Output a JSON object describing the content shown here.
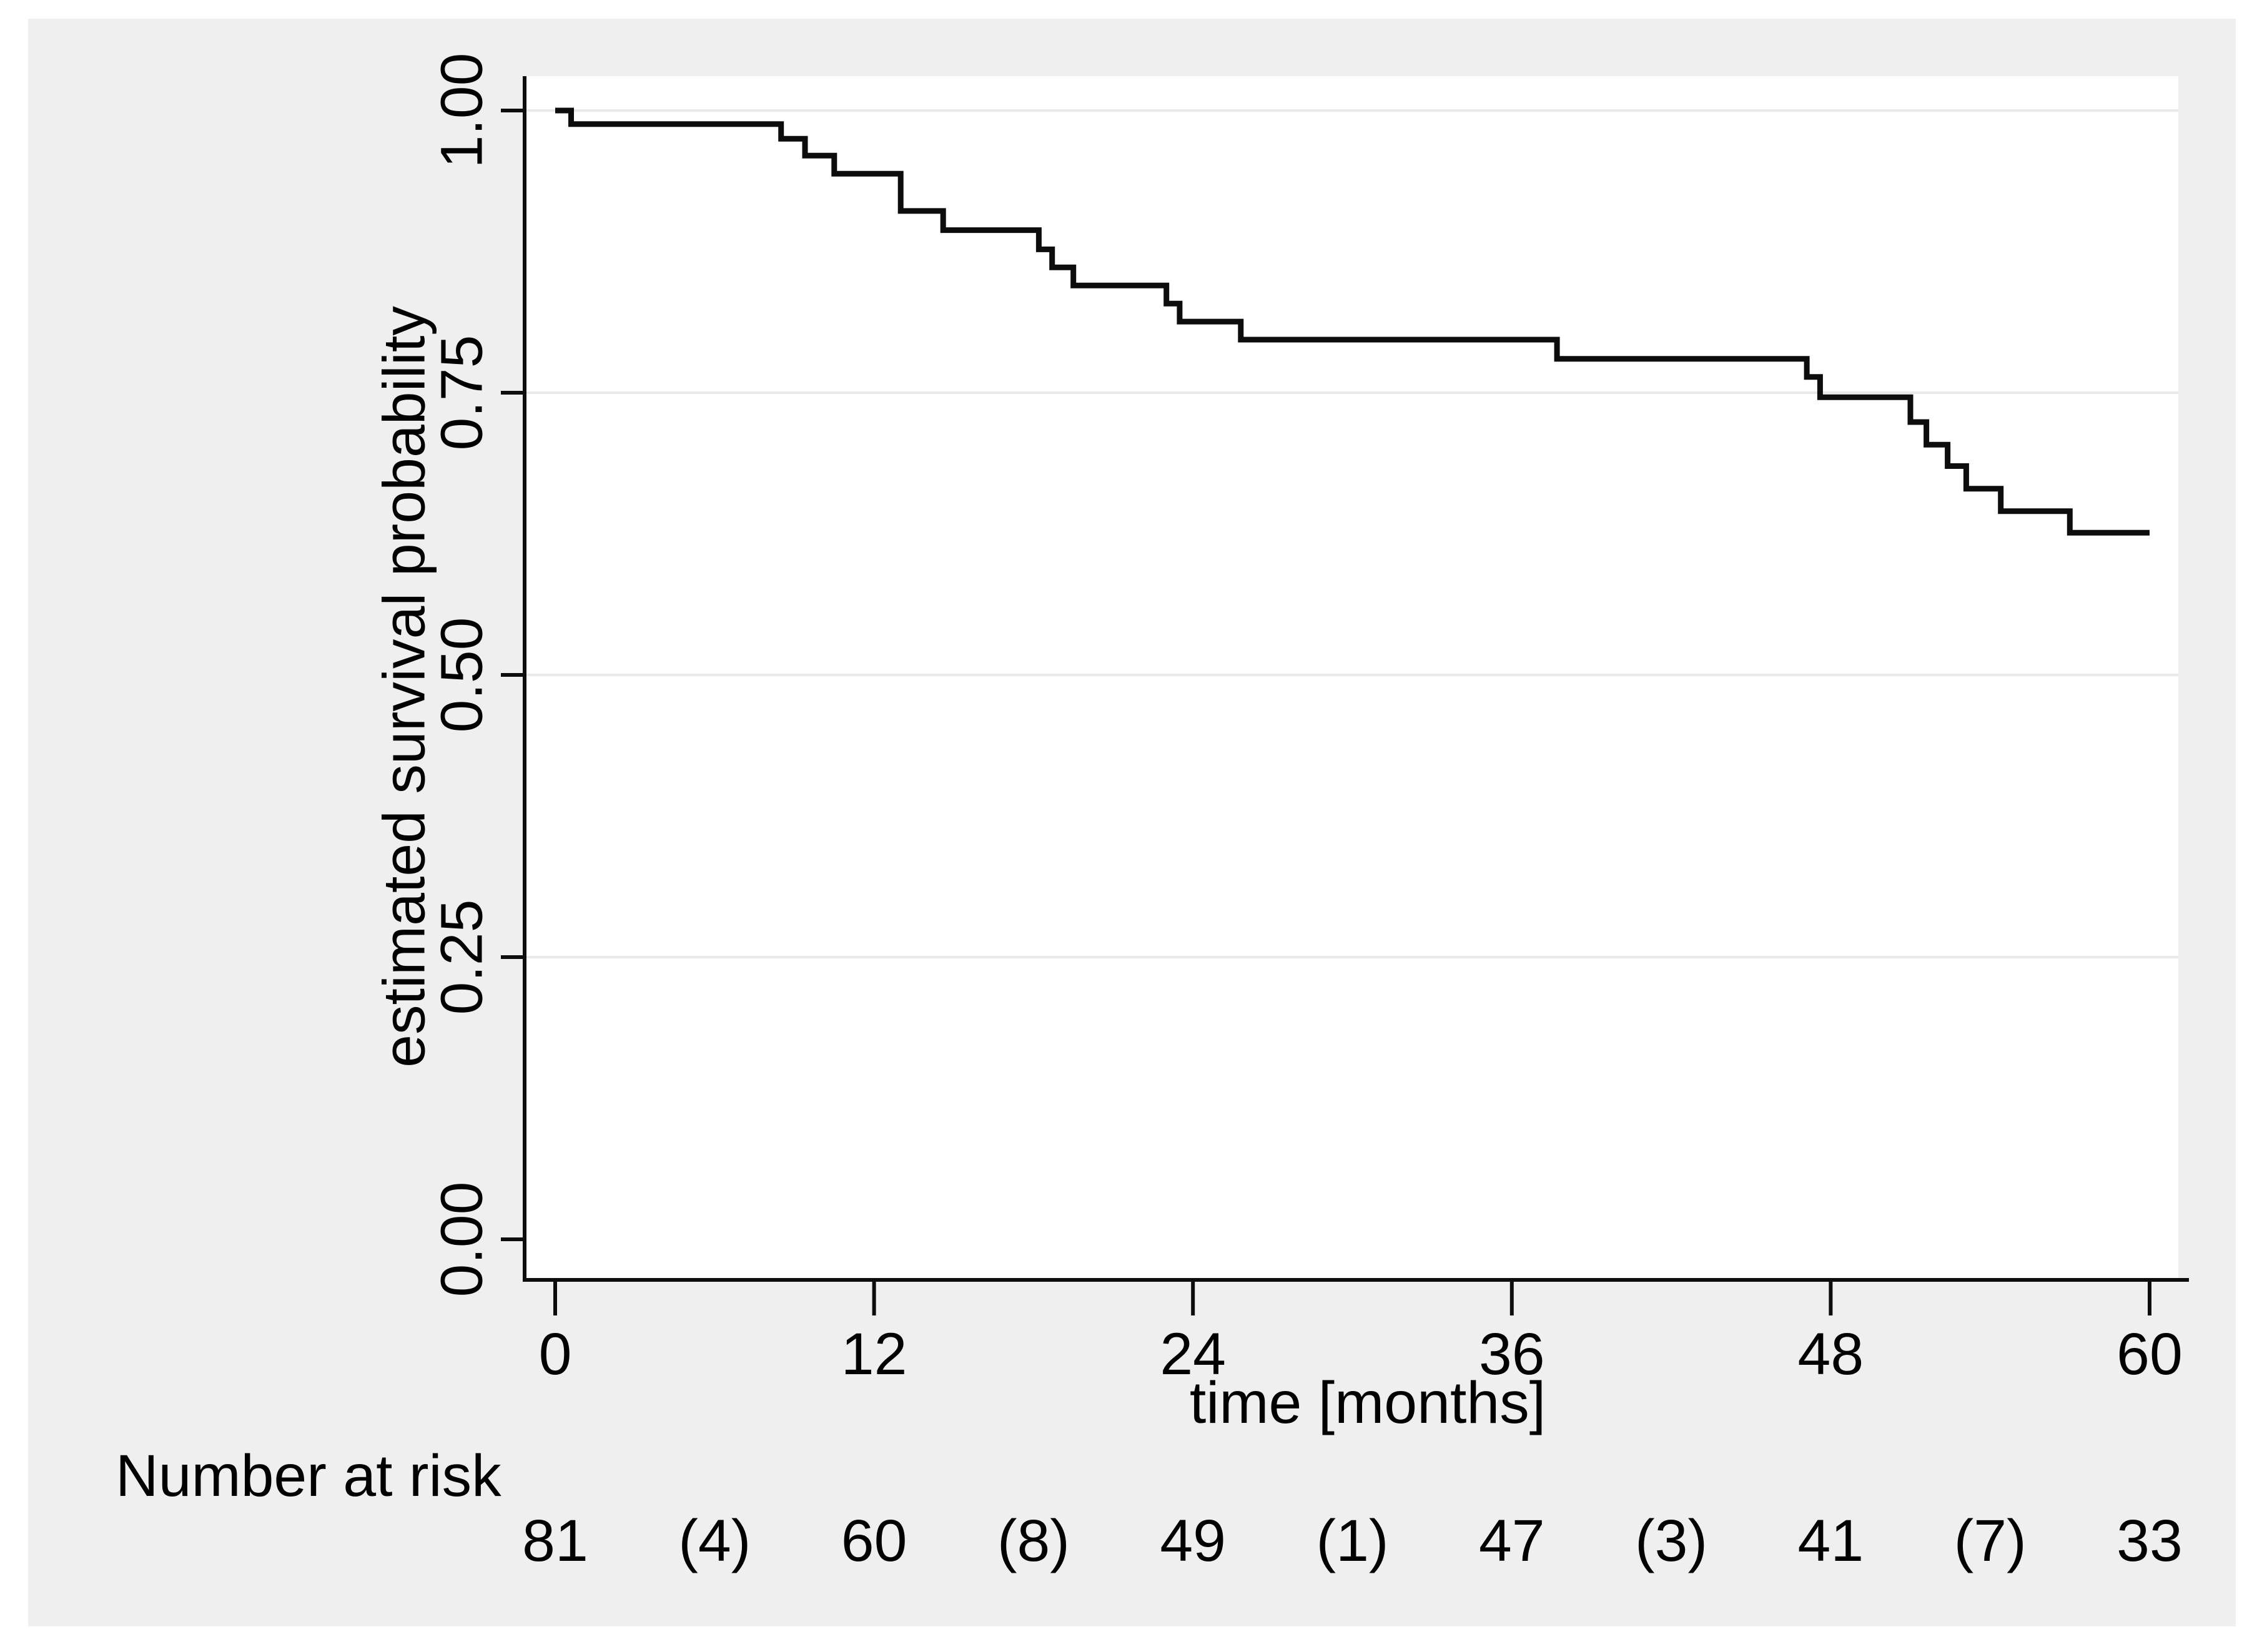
{
  "colors": {
    "page_background": "#ffffff",
    "panel_background": "#efefef",
    "plot_background": "#ffffff",
    "gridline": "#e9e9e9",
    "axis": "#0d0d0d",
    "curve": "#0d0d0d",
    "text": "#000000"
  },
  "chart_data": {
    "type": "line",
    "subtype": "kaplan-meier-step",
    "title": "",
    "xlabel": "time [months]",
    "ylabel": "estimated survival probability",
    "xlim": [
      0,
      60
    ],
    "ylim": [
      0.0,
      1.0
    ],
    "grid": "horizontal gridlines at 0.25, 0.50, 0.75, 1.00 (none at 0.00)",
    "legend": "none",
    "x_ticks": [
      0,
      12,
      24,
      36,
      48,
      60
    ],
    "y_ticks": [
      {
        "label": "1.00",
        "value": 1.0,
        "gridline": true
      },
      {
        "label": "0.75",
        "value": 0.75,
        "gridline": true
      },
      {
        "label": "0.50",
        "value": 0.5,
        "gridline": true
      },
      {
        "label": "0.25",
        "value": 0.25,
        "gridline": true
      },
      {
        "label": "0.00",
        "value": 0.0,
        "gridline": false
      }
    ],
    "series": [
      {
        "name": "estimated survival probability",
        "start": [
          0,
          1.0
        ],
        "end_time": 60,
        "steps": [
          [
            0.6,
            0.988
          ],
          [
            8.5,
            0.975
          ],
          [
            9.4,
            0.96
          ],
          [
            10.5,
            0.944
          ],
          [
            13.0,
            0.911
          ],
          [
            14.6,
            0.894
          ],
          [
            18.2,
            0.877
          ],
          [
            18.7,
            0.861
          ],
          [
            19.5,
            0.845
          ],
          [
            23.0,
            0.829
          ],
          [
            23.5,
            0.813
          ],
          [
            25.8,
            0.797
          ],
          [
            37.7,
            0.78
          ],
          [
            47.1,
            0.764
          ],
          [
            47.6,
            0.746
          ],
          [
            51.0,
            0.724
          ],
          [
            51.6,
            0.704
          ],
          [
            52.4,
            0.685
          ],
          [
            53.1,
            0.665
          ],
          [
            54.4,
            0.645
          ],
          [
            57.0,
            0.626
          ]
        ]
      }
    ]
  },
  "number_at_risk": {
    "label": "Number at risk",
    "entries": [
      {
        "t": 0,
        "text": "81"
      },
      {
        "t": 6,
        "text": "(4)"
      },
      {
        "t": 12,
        "text": "60"
      },
      {
        "t": 18,
        "text": "(8)"
      },
      {
        "t": 24,
        "text": "49"
      },
      {
        "t": 30,
        "text": "(1)"
      },
      {
        "t": 36,
        "text": "47"
      },
      {
        "t": 42,
        "text": "(3)"
      },
      {
        "t": 48,
        "text": "41"
      },
      {
        "t": 54,
        "text": "(7)"
      },
      {
        "t": 60,
        "text": "33"
      }
    ]
  }
}
